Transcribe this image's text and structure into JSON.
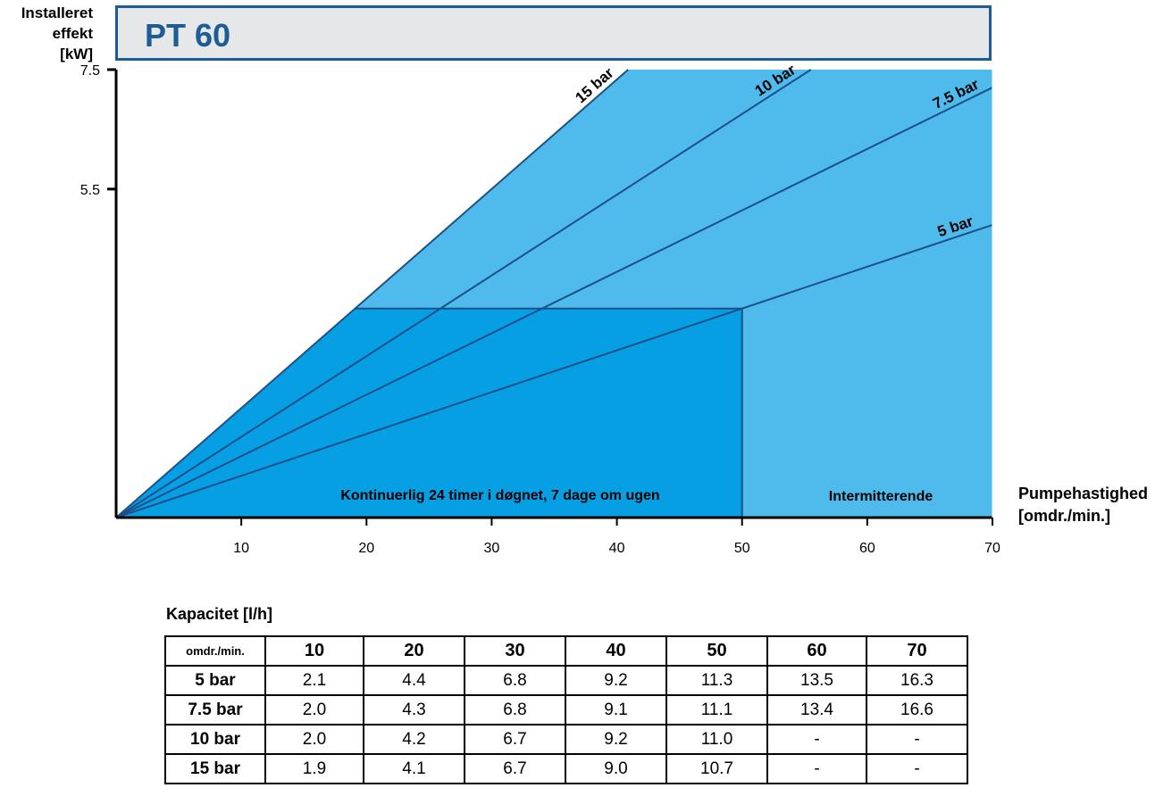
{
  "title": "PT 60",
  "chart_data": {
    "type": "line",
    "ylabel_lines": [
      "Installeret",
      "effekt",
      "[kW]"
    ],
    "xlabel_lines": [
      "Pumpehastighed",
      "[omdr./min.]"
    ],
    "xlim": [
      0,
      70
    ],
    "ylim": [
      0,
      7.5
    ],
    "x_ticks": [
      10,
      20,
      30,
      40,
      50,
      60,
      70
    ],
    "x_tick_labels": [
      "10",
      "20",
      "30",
      "40",
      "50",
      "60",
      "70"
    ],
    "y_ticks": [
      7.5,
      5.5
    ],
    "y_tick_labels": [
      "7.5",
      "5.5"
    ],
    "series": [
      {
        "name": "15 bar",
        "points": [
          [
            0,
            0
          ],
          [
            40.9,
            7.5
          ]
        ]
      },
      {
        "name": "10 bar",
        "points": [
          [
            0,
            0
          ],
          [
            55.5,
            7.5
          ]
        ]
      },
      {
        "name": "7.5 bar",
        "points": [
          [
            0,
            0
          ],
          [
            70,
            7.2
          ]
        ]
      },
      {
        "name": "5 bar",
        "points": [
          [
            0,
            0
          ],
          [
            70,
            4.9
          ]
        ]
      }
    ],
    "regions": [
      {
        "label": "Kontinuerlig 24 timer i døgnet, 7 dage om ugen",
        "x_range": [
          0,
          50
        ],
        "max_kw": 3.5
      },
      {
        "label": "Intermitterende",
        "x_range": [
          50,
          70
        ]
      }
    ],
    "colors": {
      "intermittent": "#4ebbec",
      "continuous": "#079fe4",
      "lines": "#1d4f88"
    }
  },
  "table": {
    "caption": "Kapacitet [l/h]",
    "corner": "omdr./min.",
    "columns": [
      "10",
      "20",
      "30",
      "40",
      "50",
      "60",
      "70"
    ],
    "rows": [
      {
        "label": "5 bar",
        "values": [
          "2.1",
          "4.4",
          "6.8",
          "9.2",
          "11.3",
          "13.5",
          "16.3"
        ]
      },
      {
        "label": "7.5 bar",
        "values": [
          "2.0",
          "4.3",
          "6.8",
          "9.1",
          "11.1",
          "13.4",
          "16.6"
        ]
      },
      {
        "label": "10 bar",
        "values": [
          "2.0",
          "4.2",
          "6.7",
          "9.2",
          "11.0",
          "-",
          "-"
        ]
      },
      {
        "label": "15 bar",
        "values": [
          "1.9",
          "4.1",
          "6.7",
          "9.0",
          "10.7",
          "-",
          "-"
        ]
      }
    ]
  }
}
